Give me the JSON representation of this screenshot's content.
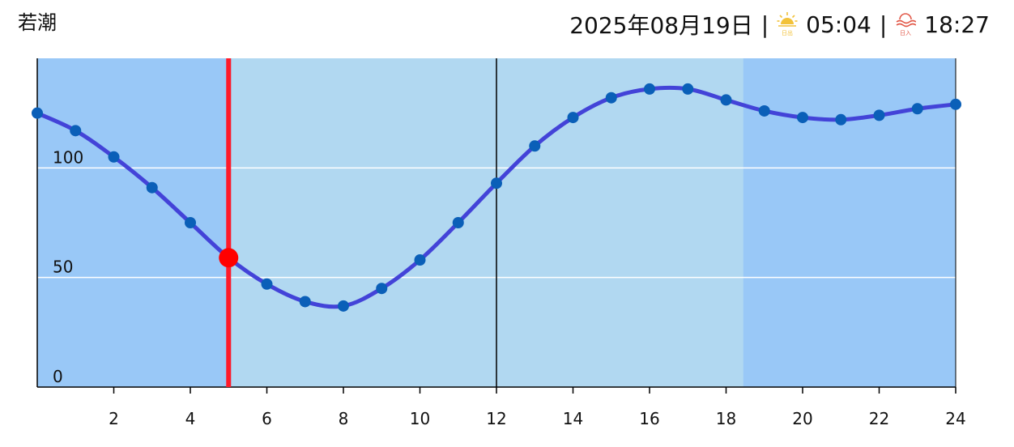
{
  "header": {
    "tide_type": "若潮",
    "date": "2025年08月19日",
    "separator": "|",
    "sunrise_icon": "sunrise-icon",
    "sunrise_icon_label": "日出",
    "sunrise_time": "05:04",
    "sunset_icon": "sunset-icon",
    "sunset_icon_label": "日入",
    "sunset_time": "18:27"
  },
  "colors": {
    "night_band": "#99c8f7",
    "day_band": "#b1d8f1",
    "line": "#4343d8",
    "points": "#0a5fb8",
    "current_time_marker": "#ff1a2a",
    "current_point": "#ff0000",
    "gridline": "#ffffff",
    "sunrise_icon": "#f2c23a",
    "sunset_icon": "#e25a4a"
  },
  "chart_data": {
    "type": "line",
    "x": [
      0,
      1,
      2,
      3,
      4,
      5,
      6,
      7,
      8,
      9,
      10,
      11,
      12,
      13,
      14,
      15,
      16,
      17,
      18,
      19,
      20,
      21,
      22,
      23,
      24
    ],
    "series": [
      {
        "values": [
          125,
          117,
          105,
          91,
          75,
          59,
          47,
          39,
          37,
          45,
          58,
          75,
          93,
          110,
          123,
          132,
          136,
          136,
          131,
          126,
          123,
          122,
          124,
          127,
          129
        ]
      }
    ],
    "xlim": [
      0,
      24
    ],
    "ylim": [
      0,
      150
    ],
    "x_ticks": [
      2,
      4,
      6,
      8,
      10,
      12,
      14,
      16,
      18,
      20,
      22,
      24
    ],
    "y_ticks": [
      0,
      50,
      100
    ],
    "y_gridlines": [
      50,
      100
    ],
    "daylight": {
      "start": 5.07,
      "end": 18.45
    },
    "current_time": {
      "x": 5,
      "y": 59
    },
    "noon_line_x": 12,
    "title": "",
    "xlabel": "",
    "ylabel": "",
    "legend": "none"
  }
}
